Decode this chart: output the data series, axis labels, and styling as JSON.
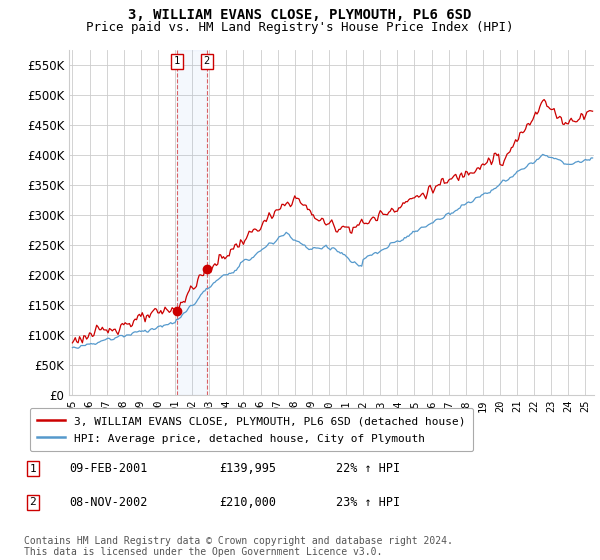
{
  "title": "3, WILLIAM EVANS CLOSE, PLYMOUTH, PL6 6SD",
  "subtitle": "Price paid vs. HM Land Registry's House Price Index (HPI)",
  "ylim": [
    0,
    575000
  ],
  "yticks": [
    0,
    50000,
    100000,
    150000,
    200000,
    250000,
    300000,
    350000,
    400000,
    450000,
    500000,
    550000
  ],
  "ytick_labels": [
    "£0",
    "£50K",
    "£100K",
    "£150K",
    "£200K",
    "£250K",
    "£300K",
    "£350K",
    "£400K",
    "£450K",
    "£500K",
    "£550K"
  ],
  "hpi_color": "#5599cc",
  "price_color": "#cc0000",
  "marker_color": "#cc0000",
  "vline_color": "#cc0000",
  "bg_color": "#ffffff",
  "grid_color": "#cccccc",
  "sale1_date_num": 2001.11,
  "sale1_price": 139995,
  "sale2_date_num": 2002.85,
  "sale2_price": 210000,
  "legend_entry1": "3, WILLIAM EVANS CLOSE, PLYMOUTH, PL6 6SD (detached house)",
  "legend_entry2": "HPI: Average price, detached house, City of Plymouth",
  "table_row1": [
    "1",
    "09-FEB-2001",
    "£139,995",
    "22% ↑ HPI"
  ],
  "table_row2": [
    "2",
    "08-NOV-2002",
    "£210,000",
    "23% ↑ HPI"
  ],
  "footer": "Contains HM Land Registry data © Crown copyright and database right 2024.\nThis data is licensed under the Open Government Licence v3.0.",
  "title_fontsize": 10,
  "subtitle_fontsize": 9,
  "axis_fontsize": 8.5,
  "legend_fontsize": 8,
  "table_fontsize": 8.5,
  "footer_fontsize": 7
}
